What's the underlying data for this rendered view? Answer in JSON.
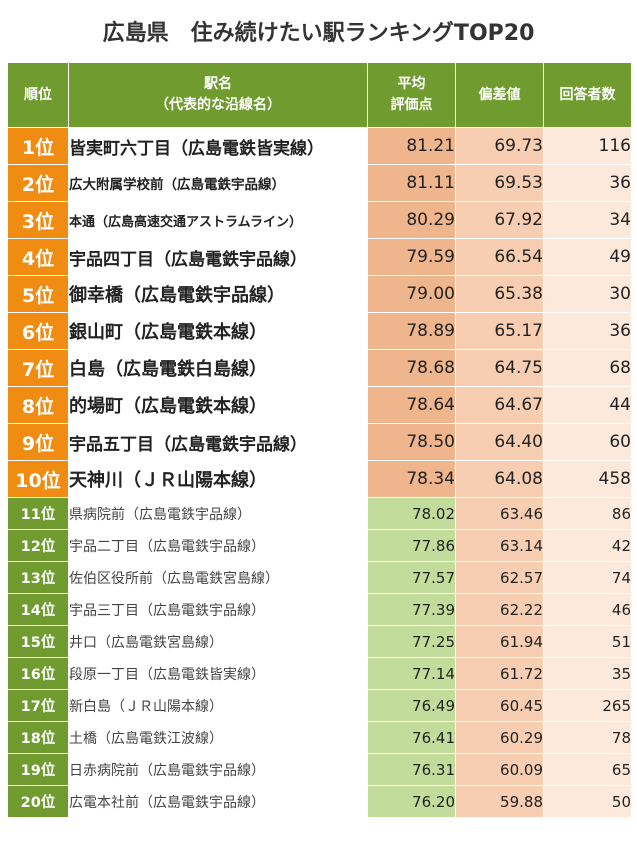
{
  "title": "広島県　住み続けたい駅ランキングTOP20",
  "headers": {
    "rank": "順位",
    "station_line1": "駅名",
    "station_line2": "（代表的な沿線名）",
    "avg_line1": "平均",
    "avg_line2": "評価点",
    "deviation": "偏差値",
    "respondents": "回答者数"
  },
  "rows": [
    {
      "rank": "1位",
      "station": "皆実町六丁目（広島電鉄皆実線）",
      "avg": "81.21",
      "dev": "69.73",
      "count": "116"
    },
    {
      "rank": "2位",
      "station": "広大附属学校前（広島電鉄宇品線）",
      "avg": "81.11",
      "dev": "69.53",
      "count": "36"
    },
    {
      "rank": "3位",
      "station": "本通（広島高速交通アストラムライン）",
      "avg": "80.29",
      "dev": "67.92",
      "count": "34"
    },
    {
      "rank": "4位",
      "station": "宇品四丁目（広島電鉄宇品線）",
      "avg": "79.59",
      "dev": "66.54",
      "count": "49"
    },
    {
      "rank": "5位",
      "station": "御幸橋（広島電鉄宇品線）",
      "avg": "79.00",
      "dev": "65.38",
      "count": "30"
    },
    {
      "rank": "6位",
      "station": "銀山町（広島電鉄本線）",
      "avg": "78.89",
      "dev": "65.17",
      "count": "36"
    },
    {
      "rank": "7位",
      "station": "白島（広島電鉄白島線）",
      "avg": "78.68",
      "dev": "64.75",
      "count": "68"
    },
    {
      "rank": "8位",
      "station": "的場町（広島電鉄本線）",
      "avg": "78.64",
      "dev": "64.67",
      "count": "44"
    },
    {
      "rank": "9位",
      "station": "宇品五丁目（広島電鉄宇品線）",
      "avg": "78.50",
      "dev": "64.40",
      "count": "60"
    },
    {
      "rank": "10位",
      "station": "天神川（ＪＲ山陽本線）",
      "avg": "78.34",
      "dev": "64.08",
      "count": "458"
    },
    {
      "rank": "11位",
      "station": "県病院前（広島電鉄宇品線）",
      "avg": "78.02",
      "dev": "63.46",
      "count": "86"
    },
    {
      "rank": "12位",
      "station": "宇品二丁目（広島電鉄宇品線）",
      "avg": "77.86",
      "dev": "63.14",
      "count": "42"
    },
    {
      "rank": "13位",
      "station": "佐伯区役所前（広島電鉄宮島線）",
      "avg": "77.57",
      "dev": "62.57",
      "count": "74"
    },
    {
      "rank": "14位",
      "station": "宇品三丁目（広島電鉄宇品線）",
      "avg": "77.39",
      "dev": "62.22",
      "count": "46"
    },
    {
      "rank": "15位",
      "station": "井口（広島電鉄宮島線）",
      "avg": "77.25",
      "dev": "61.94",
      "count": "51"
    },
    {
      "rank": "16位",
      "station": "段原一丁目（広島電鉄皆実線）",
      "avg": "77.14",
      "dev": "61.72",
      "count": "35"
    },
    {
      "rank": "17位",
      "station": "新白島（ＪＲ山陽本線）",
      "avg": "76.49",
      "dev": "60.45",
      "count": "265"
    },
    {
      "rank": "18位",
      "station": "土橋（広島電鉄江波線）",
      "avg": "76.41",
      "dev": "60.29",
      "count": "78"
    },
    {
      "rank": "19位",
      "station": "日赤病院前（広島電鉄宇品線）",
      "avg": "76.31",
      "dev": "60.09",
      "count": "65"
    },
    {
      "rank": "20位",
      "station": "広電本社前（広島電鉄宇品線）",
      "avg": "76.20",
      "dev": "59.88",
      "count": "50"
    }
  ]
}
